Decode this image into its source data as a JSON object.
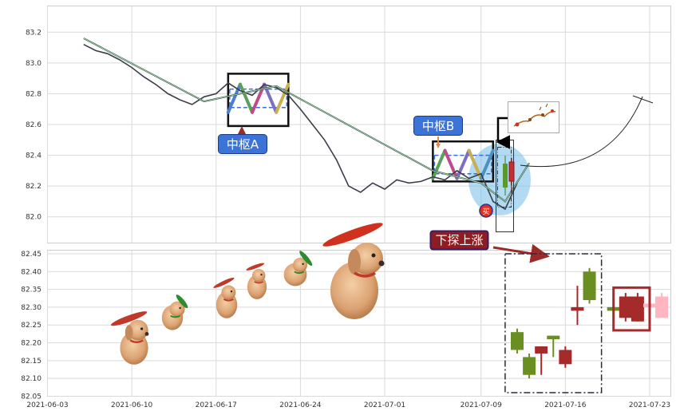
{
  "chart_data": [
    {
      "type": "line",
      "panel": "top",
      "title": "",
      "xlabel": "",
      "ylabel": "",
      "ylim": [
        81.83,
        83.37
      ],
      "yticks": [
        "82.0",
        "82.2",
        "82.4",
        "82.6",
        "82.8",
        "83.0",
        "83.2"
      ],
      "grid": true,
      "series": [
        {
          "role": "price",
          "color": "#3b3f4a",
          "x": [
            "2021-06-06",
            "2021-06-07",
            "2021-06-08",
            "2021-06-09",
            "2021-06-10",
            "2021-06-11",
            "2021-06-12",
            "2021-06-13",
            "2021-06-14",
            "2021-06-15",
            "2021-06-16",
            "2021-06-17",
            "2021-06-18",
            "2021-06-19",
            "2021-06-20",
            "2021-06-21",
            "2021-06-22",
            "2021-06-23",
            "2021-06-24",
            "2021-06-25",
            "2021-06-26",
            "2021-06-27",
            "2021-06-28",
            "2021-06-29",
            "2021-06-30",
            "2021-07-01",
            "2021-07-02",
            "2021-07-03",
            "2021-07-04",
            "2021-07-05",
            "2021-07-06",
            "2021-07-07",
            "2021-07-08",
            "2021-07-09",
            "2021-07-10",
            "2021-07-11",
            "2021-07-12"
          ],
          "values": [
            83.12,
            83.08,
            83.06,
            83.02,
            82.97,
            82.91,
            82.86,
            82.8,
            82.76,
            82.73,
            82.78,
            82.8,
            82.87,
            82.82,
            82.79,
            82.86,
            82.84,
            82.79,
            82.7,
            82.6,
            82.5,
            82.37,
            82.2,
            82.16,
            82.22,
            82.18,
            82.24,
            82.22,
            82.23,
            82.26,
            82.24,
            82.3,
            82.25,
            82.28,
            82.1,
            82.05,
            82.22
          ]
        },
        {
          "role": "stroke-line",
          "color": "#2f4f3f",
          "x": [
            "2021-06-06",
            "2021-06-16",
            "2021-06-22",
            "2021-07-05",
            "2021-07-09",
            "2021-07-11",
            "2021-07-13"
          ],
          "values": [
            83.16,
            82.75,
            82.85,
            82.3,
            82.22,
            82.1,
            82.35
          ]
        }
      ],
      "pivots": [
        {
          "label": "中枢A",
          "x_range": [
            "2021-06-18",
            "2021-06-23"
          ],
          "y_range": [
            82.59,
            82.93
          ],
          "inner_y": [
            82.71,
            82.83
          ]
        },
        {
          "label": "中枢B",
          "x_range": [
            "2021-07-05",
            "2021-07-10"
          ],
          "y_range": [
            82.23,
            82.49
          ],
          "inner_y": [
            82.28,
            82.4
          ]
        }
      ],
      "buy_marker": {
        "label": "买",
        "x": "2021-07-12",
        "y": 82.04
      },
      "highlight": {
        "color": "#7fc1ea"
      },
      "projection_arc": {
        "from": [
          "2021-07-15",
          82.33
        ],
        "to": [
          "2021-07-24",
          82.78
        ]
      }
    },
    {
      "type": "candlestick",
      "panel": "bottom",
      "title": "",
      "xlabel": "",
      "ylabel": "",
      "ylim": [
        82.05,
        82.46
      ],
      "yticks": [
        "82.05",
        "82.10",
        "82.15",
        "82.20",
        "82.25",
        "82.30",
        "82.35",
        "82.40",
        "82.45"
      ],
      "xticks": [
        "2021-06-03",
        "2021-06-10",
        "2021-06-17",
        "2021-06-24",
        "2021-07-01",
        "2021-07-09",
        "2021-07-16",
        "2021-07-23"
      ],
      "xlim": [
        "2021-06-03",
        "2021-07-27"
      ],
      "grid": true,
      "colors": {
        "up": "#6b8e23",
        "down": "#a52a2a",
        "ghost": "#ffb6c1"
      },
      "candles": [
        {
          "x": "2021-07-12",
          "open": 82.18,
          "close": 82.23,
          "high": 82.24,
          "low": 82.17
        },
        {
          "x": "2021-07-13",
          "open": 82.11,
          "close": 82.16,
          "high": 82.17,
          "low": 82.1
        },
        {
          "x": "2021-07-14",
          "open": 82.19,
          "close": 82.17,
          "high": 82.19,
          "low": 82.11
        },
        {
          "x": "2021-07-15",
          "open": 82.21,
          "close": 82.22,
          "high": 82.22,
          "low": 82.16
        },
        {
          "x": "2021-07-16",
          "open": 82.18,
          "close": 82.14,
          "high": 82.19,
          "low": 82.13
        },
        {
          "x": "2021-07-17",
          "open": 82.3,
          "close": 82.29,
          "high": 82.36,
          "low": 82.25
        },
        {
          "x": "2021-07-18",
          "open": 82.32,
          "close": 82.4,
          "high": 82.41,
          "low": 82.31
        },
        {
          "x": "2021-07-20",
          "open": 82.29,
          "close": 82.3,
          "high": 82.33,
          "low": 82.27
        },
        {
          "x": "2021-07-21",
          "open": 82.33,
          "close": 82.27,
          "high": 82.34,
          "low": 82.26
        },
        {
          "x": "2021-07-22",
          "open": 82.33,
          "close": 82.26,
          "high": 82.34,
          "low": 82.26
        },
        {
          "x": "2021-07-23",
          "open": 82.3,
          "close": 82.31,
          "high": 82.32,
          "low": 82.29,
          "ghost": true
        },
        {
          "x": "2021-07-24",
          "open": 82.27,
          "close": 82.33,
          "high": 82.34,
          "low": 82.27,
          "ghost": true
        }
      ],
      "dashed_box": {
        "x_range": [
          "2021-07-11",
          "2021-07-19"
        ],
        "y_range": [
          82.06,
          82.45
        ]
      },
      "focus_box": {
        "x_range": [
          "2021-07-20",
          "2021-07-23"
        ],
        "y_range": [
          82.235,
          82.355
        ]
      }
    }
  ],
  "annotations": {
    "pivot_a": "中枢A",
    "pivot_b": "中枢B",
    "probe": "下探上涨",
    "buy": "买"
  },
  "decorations": {
    "mascot": "puppies-with-propeller-hats",
    "reindeer_thumbnail": "reindeer-sleigh-icon"
  }
}
